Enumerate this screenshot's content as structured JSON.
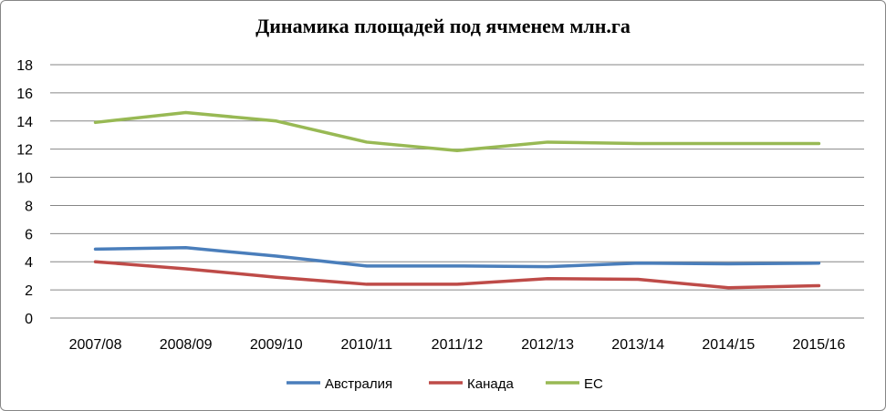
{
  "chart_data": {
    "type": "line",
    "title": "Динамика площадей под ячменем млн.га",
    "xlabel": "",
    "ylabel": "",
    "categories": [
      "2007/08",
      "2008/09",
      "2009/10",
      "2010/11",
      "2011/12",
      "2012/13",
      "2013/14",
      "2014/15",
      "2015/16"
    ],
    "ylim": [
      0,
      18
    ],
    "yticks": [
      "0",
      "2",
      "4",
      "6",
      "8",
      "10",
      "12",
      "14",
      "16",
      "18"
    ],
    "grid": true,
    "legend": "bottom",
    "series": [
      {
        "name": "Австралия",
        "color": "#4a7ebb",
        "values": [
          4.9,
          5.0,
          4.4,
          3.7,
          3.7,
          3.65,
          3.9,
          3.85,
          3.9
        ]
      },
      {
        "name": "Канада",
        "color": "#be4b48",
        "values": [
          4.0,
          3.5,
          2.9,
          2.4,
          2.4,
          2.8,
          2.75,
          2.15,
          2.3
        ]
      },
      {
        "name": "ЕС",
        "color": "#98b954",
        "values": [
          13.9,
          14.6,
          14.0,
          12.5,
          11.9,
          12.5,
          12.4,
          12.4,
          12.4
        ]
      }
    ]
  }
}
